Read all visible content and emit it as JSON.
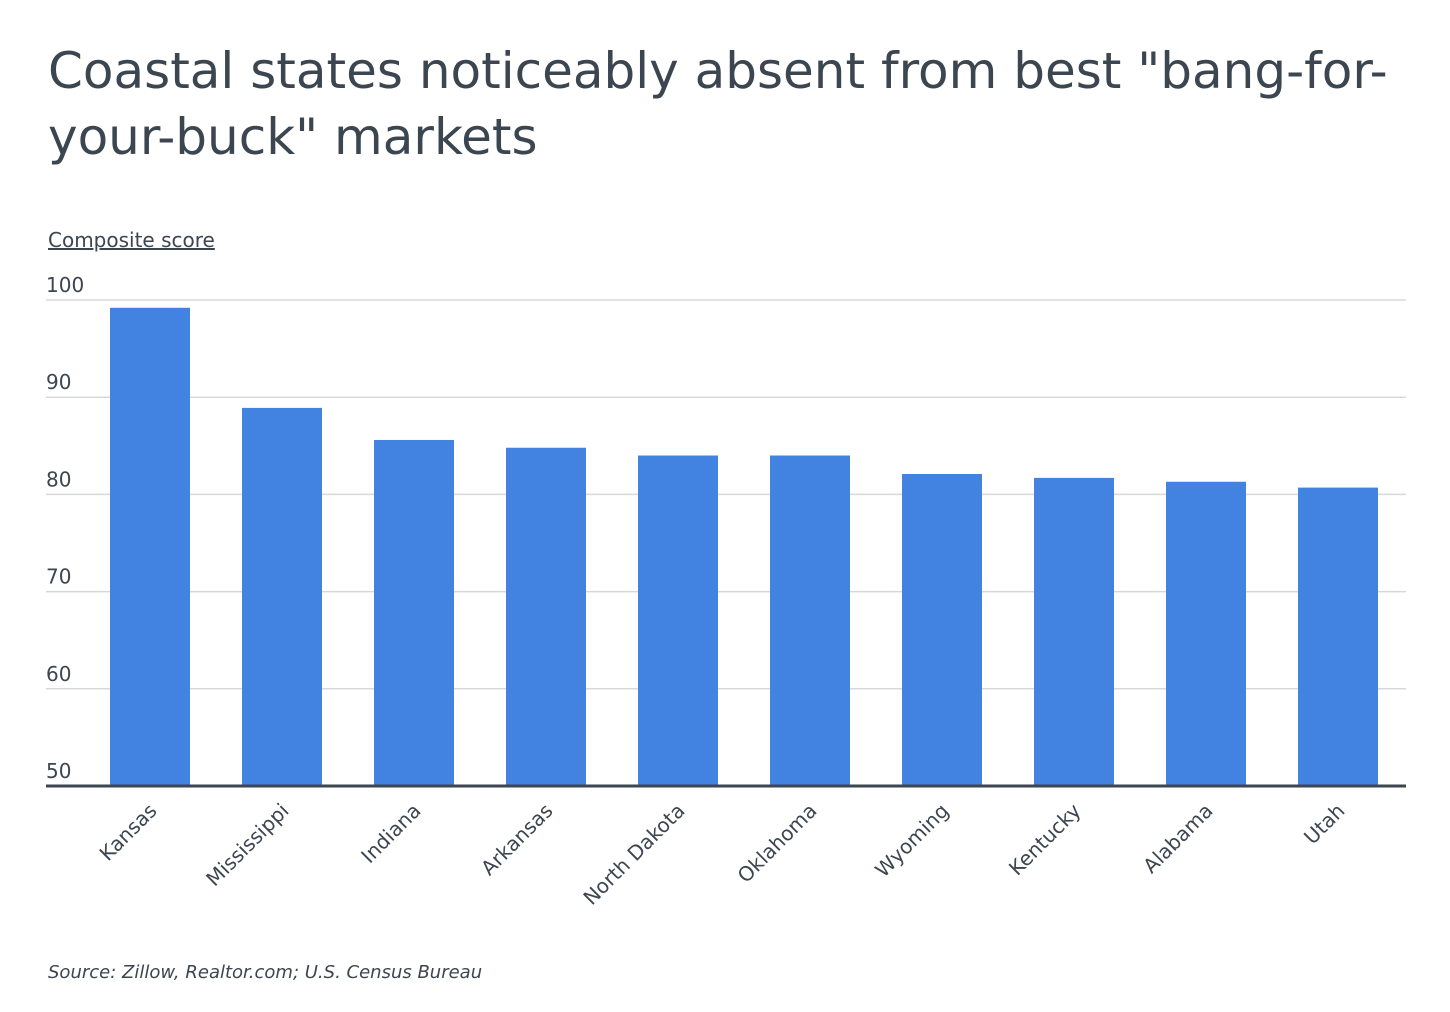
{
  "title": "Coastal states noticeably absent from best \"bang-for-your-buck\" markets",
  "ylabel": "Composite score",
  "source": "Source:  Zillow, Realtor.com; U.S. Census Bureau",
  "colors": {
    "bar": "#4282e0",
    "grid": "#d8d8d8",
    "axis": "#3c4650",
    "text": "#3c4650"
  },
  "chart_data": {
    "type": "bar",
    "categories": [
      "Kansas",
      "Mississippi",
      "Indiana",
      "Arkansas",
      "North Dakota",
      "Oklahoma",
      "Wyoming",
      "Kentucky",
      "Alabama",
      "Utah"
    ],
    "values": [
      99.2,
      88.9,
      85.6,
      84.8,
      84.0,
      84.0,
      82.1,
      81.7,
      81.3,
      80.7
    ],
    "ylim": [
      50,
      100
    ],
    "yticks": [
      50,
      60,
      70,
      80,
      90,
      100
    ],
    "ylabel": "Composite score",
    "xlabel": "",
    "grid": true
  }
}
